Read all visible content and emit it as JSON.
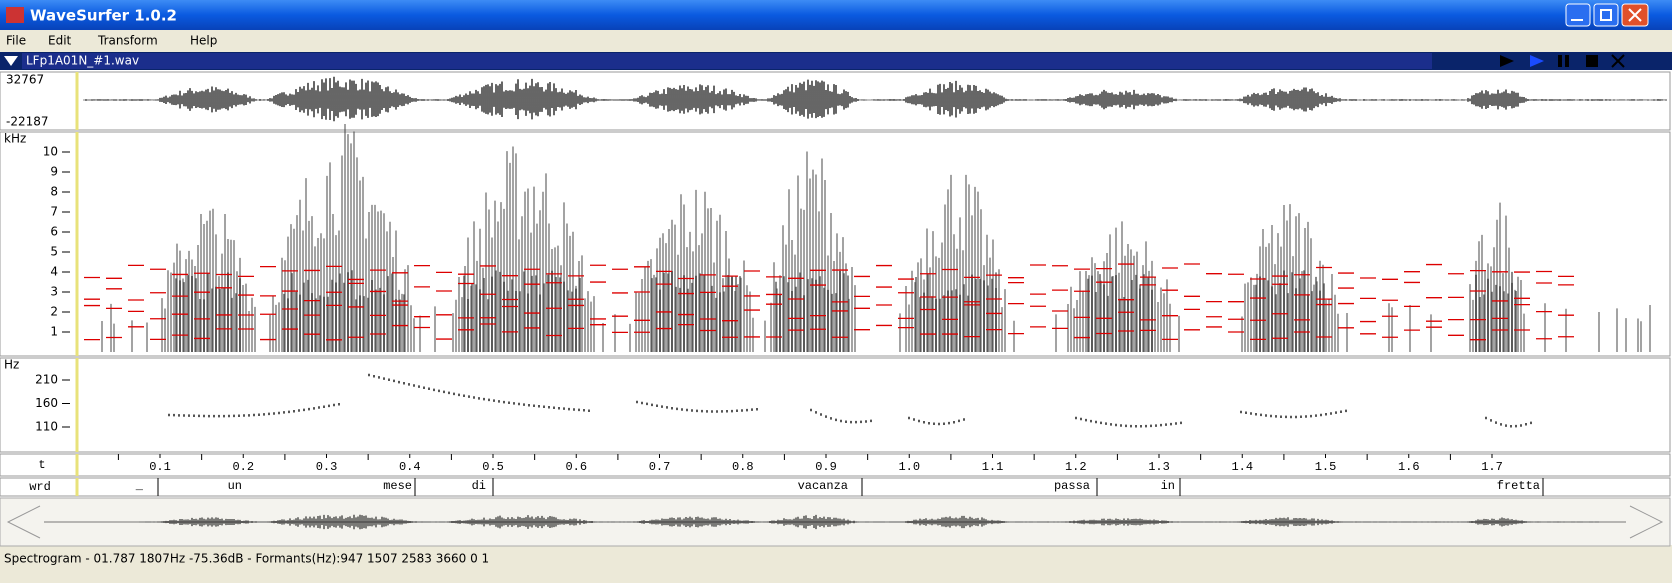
{
  "window": {
    "title": "WaveSurfer 1.0.2",
    "menu": [
      "File",
      "Edit",
      "Transform",
      "Help"
    ]
  },
  "file": {
    "name": "LFp1A01N_#1.wav"
  },
  "waveform": {
    "max": "32767",
    "min": "-22187"
  },
  "spectrogram": {
    "unit": "kHz",
    "ticks": [
      "10",
      "9",
      "8",
      "7",
      "6",
      "5",
      "4",
      "3",
      "2",
      "1"
    ]
  },
  "pitch": {
    "unit": "Hz",
    "ticks": [
      "210",
      "160",
      "110"
    ]
  },
  "time": {
    "label": "t",
    "ticks": [
      "0.1",
      "0.2",
      "0.3",
      "0.4",
      "0.5",
      "0.6",
      "0.7",
      "0.8",
      "0.9",
      "1.0",
      "1.1",
      "1.2",
      "1.3",
      "1.4",
      "1.5",
      "1.6",
      "1.7"
    ]
  },
  "words": {
    "label": "wrd",
    "items": [
      "_",
      "un",
      "mese",
      "di",
      "vacanza",
      "passa",
      "in",
      "fretta"
    ]
  },
  "status": "Spectrogram - 01.787 1807Hz -75.36dB - Formants(Hz):947 1507 2583 3660 0 1"
}
